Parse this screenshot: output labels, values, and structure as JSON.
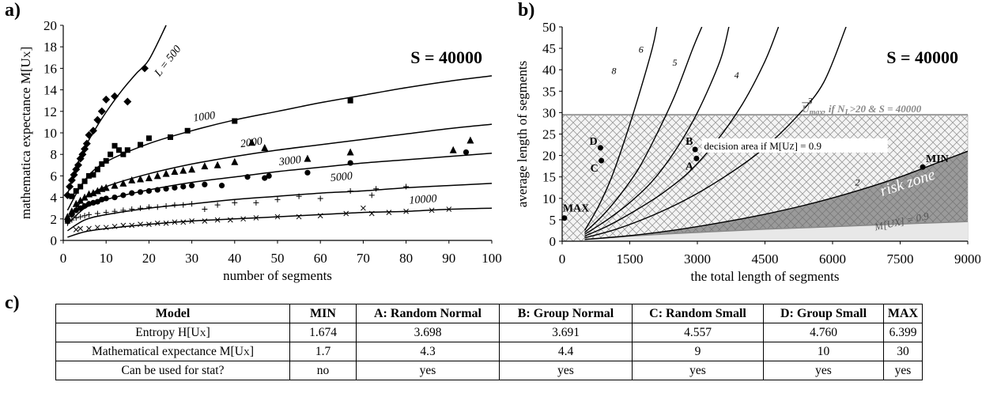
{
  "panel_labels": {
    "a": "a)",
    "b": "b)",
    "c": "c)"
  },
  "chart_data": [
    {
      "type": "scatter",
      "panel": "a)",
      "annotation": "S = 40000",
      "xlabel": "number of segments",
      "ylabel": "mathematica expectance M[U",
      "ylabel_sub": "X",
      "ylabel_end": "]",
      "xlim": [
        0,
        100
      ],
      "ylim": [
        0,
        20
      ],
      "xticks": [
        "0",
        "10",
        "20",
        "30",
        "40",
        "50",
        "60",
        "70",
        "80",
        "90",
        "100"
      ],
      "yticks": [
        "0",
        "2",
        "4",
        "6",
        "8",
        "10",
        "12",
        "14",
        "16",
        "18",
        "20"
      ],
      "grid": false,
      "series": [
        {
          "name": "L = 500",
          "marker": "diamond",
          "x": [
            1,
            1.5,
            2,
            2.5,
            3,
            3.5,
            4,
            4.5,
            5,
            5.5,
            6,
            7,
            8,
            9,
            10,
            12,
            15,
            19
          ],
          "y": [
            4.2,
            5.0,
            5.6,
            6.1,
            6.6,
            7.0,
            7.6,
            8.0,
            8.5,
            9.0,
            9.8,
            10.2,
            11.2,
            12.0,
            13.1,
            13.4,
            12.9,
            16.0
          ]
        },
        {
          "name": "1000",
          "marker": "square",
          "x": [
            2,
            3,
            4,
            5,
            6,
            7,
            8,
            9,
            10,
            11,
            12,
            13,
            14,
            15,
            18,
            20,
            25,
            29,
            40,
            67
          ],
          "y": [
            4.1,
            4.6,
            5.0,
            5.5,
            6.0,
            6.1,
            6.6,
            7.1,
            7.4,
            8.0,
            8.8,
            8.4,
            8.0,
            8.4,
            8.9,
            9.5,
            9.6,
            10.2,
            11.1,
            13.0
          ]
        },
        {
          "name": "2000",
          "marker": "triangle",
          "x": [
            1,
            2,
            3,
            4,
            5,
            6,
            7,
            8,
            9,
            10,
            12,
            14,
            16,
            18,
            20,
            22,
            24,
            26,
            28,
            30,
            33,
            36,
            40,
            44,
            47,
            57,
            67,
            91,
            95
          ],
          "y": [
            2.2,
            2.7,
            3.4,
            3.7,
            4.0,
            4.3,
            4.4,
            4.6,
            4.8,
            4.9,
            5.1,
            5.3,
            5.6,
            5.7,
            5.8,
            6.0,
            6.2,
            6.4,
            6.5,
            6.6,
            6.9,
            7.0,
            7.3,
            9.1,
            8.6,
            7.6,
            8.2,
            8.4,
            9.3
          ]
        },
        {
          "name": "3000",
          "marker": "circle",
          "x": [
            1,
            2,
            3,
            4,
            5,
            6,
            7,
            8,
            9,
            10,
            12,
            14,
            16,
            18,
            20,
            22,
            24,
            26,
            28,
            30,
            33,
            37,
            43,
            47,
            48,
            57,
            67,
            94
          ],
          "y": [
            1.8,
            2.4,
            2.8,
            3.0,
            3.2,
            3.4,
            3.5,
            3.6,
            3.8,
            3.9,
            4.0,
            4.2,
            4.4,
            4.5,
            4.6,
            4.7,
            4.8,
            4.9,
            5.0,
            5.1,
            5.2,
            5.1,
            5.9,
            5.8,
            6.0,
            6.3,
            7.2,
            8.2
          ]
        },
        {
          "name": "5000",
          "marker": "plus",
          "x": [
            1,
            2,
            3,
            4,
            5,
            6,
            8,
            10,
            12,
            14,
            16,
            18,
            20,
            22,
            24,
            26,
            28,
            30,
            33,
            36,
            40,
            45,
            50,
            55,
            60,
            67,
            72,
            73,
            80
          ],
          "y": [
            1.6,
            1.9,
            2.1,
            2.2,
            2.3,
            2.4,
            2.5,
            2.6,
            2.7,
            2.8,
            2.9,
            3.0,
            3.1,
            3.1,
            3.2,
            3.3,
            3.3,
            3.4,
            2.9,
            3.3,
            3.5,
            3.5,
            3.8,
            4.1,
            3.9,
            4.6,
            4.2,
            4.8,
            5.0
          ]
        },
        {
          "name": "10000",
          "marker": "x",
          "x": [
            3,
            4,
            6,
            8,
            10,
            12,
            14,
            16,
            18,
            20,
            22,
            24,
            26,
            28,
            30,
            33,
            36,
            39,
            42,
            45,
            50,
            55,
            60,
            66,
            70,
            72,
            76,
            80,
            86,
            90
          ],
          "y": [
            1.0,
            1.1,
            1.1,
            1.2,
            1.2,
            1.3,
            1.4,
            1.4,
            1.5,
            1.5,
            1.6,
            1.6,
            1.7,
            1.7,
            1.8,
            1.8,
            1.9,
            1.9,
            2.0,
            2.1,
            2.2,
            2.2,
            2.3,
            2.5,
            3.0,
            2.5,
            2.6,
            2.7,
            2.8,
            2.9
          ]
        }
      ],
      "fit_lines": [
        {
          "label": "L = 500",
          "x": [
            1,
            3,
            5,
            8,
            11,
            14,
            17,
            20,
            24
          ],
          "y": [
            4.3,
            6.8,
            8.6,
            10.7,
            12.5,
            14.1,
            15.5,
            16.8,
            20.0
          ]
        },
        {
          "label": "1000",
          "x": [
            1,
            5,
            10,
            20,
            30,
            40,
            50,
            60,
            70,
            80,
            90,
            100
          ],
          "y": [
            2.8,
            5.6,
            7.3,
            9.0,
            10.2,
            11.2,
            12.0,
            12.8,
            13.5,
            14.2,
            14.8,
            15.3
          ]
        },
        {
          "label": "2000",
          "x": [
            1,
            5,
            10,
            20,
            30,
            40,
            50,
            60,
            70,
            80,
            90,
            100
          ],
          "y": [
            2.0,
            3.9,
            5.0,
            6.2,
            7.1,
            7.8,
            8.4,
            8.9,
            9.4,
            9.9,
            10.4,
            10.8
          ]
        },
        {
          "label": "3000",
          "x": [
            1,
            5,
            10,
            20,
            30,
            40,
            50,
            60,
            70,
            80,
            90,
            100
          ],
          "y": [
            1.5,
            3.0,
            3.8,
            4.7,
            5.4,
            5.9,
            6.4,
            6.8,
            7.2,
            7.5,
            7.8,
            8.1
          ]
        },
        {
          "label": "5000",
          "x": [
            1,
            5,
            10,
            20,
            30,
            40,
            50,
            60,
            70,
            80,
            90,
            100
          ],
          "y": [
            0.9,
            1.9,
            2.4,
            3.0,
            3.4,
            3.8,
            4.1,
            4.4,
            4.6,
            4.9,
            5.1,
            5.3
          ]
        },
        {
          "label": "10000",
          "x": [
            1,
            5,
            10,
            20,
            30,
            40,
            50,
            60,
            70,
            80,
            90,
            100
          ],
          "y": [
            0.3,
            0.8,
            1.1,
            1.5,
            1.8,
            2.0,
            2.2,
            2.4,
            2.6,
            2.7,
            2.9,
            3.0
          ]
        }
      ]
    },
    {
      "type": "line",
      "panel": "b)",
      "annotation": "S = 40000",
      "xlabel": "the total length of segments",
      "ylabel": "average length of segments",
      "xlim": [
        0,
        9000
      ],
      "ylim": [
        0,
        50
      ],
      "xticks": [
        "0",
        "1500",
        "3000",
        "4500",
        "6000",
        "7500",
        "9000"
      ],
      "yticks": [
        "0",
        "5",
        "10",
        "15",
        "20",
        "25",
        "30",
        "35",
        "40",
        "45",
        "50"
      ],
      "grid": false,
      "series": [
        {
          "name": "8",
          "x": [
            500,
            800,
            1100,
            1400,
            1700,
            2000,
            2100
          ],
          "y": [
            2.5,
            8,
            15,
            24,
            34,
            45,
            50
          ]
        },
        {
          "name": "6",
          "x": [
            500,
            900,
            1300,
            1700,
            2100,
            2500,
            2900,
            3100
          ],
          "y": [
            2.0,
            6,
            11,
            17,
            25,
            34,
            45,
            50
          ]
        },
        {
          "name": "5",
          "x": [
            500,
            1000,
            1500,
            2000,
            2500,
            3000,
            3500,
            3700
          ],
          "y": [
            1.6,
            5,
            9,
            14,
            21,
            30,
            42,
            50
          ]
        },
        {
          "name": "4",
          "x": [
            500,
            1000,
            1600,
            2200,
            2800,
            3400,
            4000,
            4500,
            4800
          ],
          "y": [
            1.2,
            3.5,
            7,
            11,
            16,
            23,
            32,
            42,
            50
          ]
        },
        {
          "name": "3",
          "x": [
            500,
            1200,
            2000,
            2800,
            3600,
            4400,
            5200,
            5800,
            6300
          ],
          "y": [
            0.8,
            2.8,
            6,
            10,
            15,
            21,
            29,
            37,
            50
          ]
        },
        {
          "name": "2",
          "x": [
            500,
            1500,
            2500,
            3500,
            4500,
            5500,
            6500,
            7500,
            8500,
            9000
          ],
          "y": [
            0.4,
            1.3,
            2.6,
            4.3,
            6.3,
            8.7,
            11.6,
            15,
            19,
            21
          ]
        }
      ],
      "threshold": {
        "value": 29.5,
        "label_prefix": "U",
        "label_sub": "max",
        "label_mid": ", if N",
        "label_sub2": "L",
        "label_end": ">20 & S = 40000"
      },
      "decision_area_label": "decision area if M[U",
      "decision_area_sub": "Z",
      "decision_area_end": "] = 0.9",
      "risk_zone_label": "risk zone",
      "risk_curve_label": "M[UX] = 0.9",
      "risk_curve": {
        "x": [
          500,
          1500,
          2500,
          3500,
          4500,
          5500,
          6500,
          7500,
          8500,
          9000
        ],
        "y": [
          0.4,
          1.2,
          1.8,
          2.3,
          2.8,
          3.2,
          3.6,
          4.0,
          4.4,
          4.6
        ]
      },
      "points": [
        {
          "label": "D",
          "x": 850,
          "y": 21.8
        },
        {
          "label": "C",
          "x": 870,
          "y": 18.8
        },
        {
          "label": "B",
          "x": 2950,
          "y": 21.4
        },
        {
          "label": "A",
          "x": 2980,
          "y": 19.3
        },
        {
          "label": "MIN",
          "x": 8000,
          "y": 17.3
        },
        {
          "label": "MAX",
          "x": 50,
          "y": 5.4
        }
      ]
    }
  ],
  "table": {
    "headers": [
      "Model",
      "MIN",
      "A: Random Normal",
      "B: Group Normal",
      "C: Random Small",
      "D: Group Small",
      "MAX"
    ],
    "rows": [
      {
        "label": "Entropy H[U",
        "sub": "X",
        "end": "]",
        "values": [
          "1.674",
          "3.698",
          "3.691",
          "4.557",
          "4.760",
          "6.399"
        ]
      },
      {
        "label": "Mathematical expectance M[U",
        "sub": "X",
        "end": "]",
        "values": [
          "1.7",
          "4.3",
          "4.4",
          "9",
          "10",
          "30"
        ]
      },
      {
        "label": "Can be used for stat?",
        "sub": "",
        "end": "",
        "values": [
          "no",
          "yes",
          "yes",
          "yes",
          "yes",
          "yes"
        ]
      }
    ]
  }
}
